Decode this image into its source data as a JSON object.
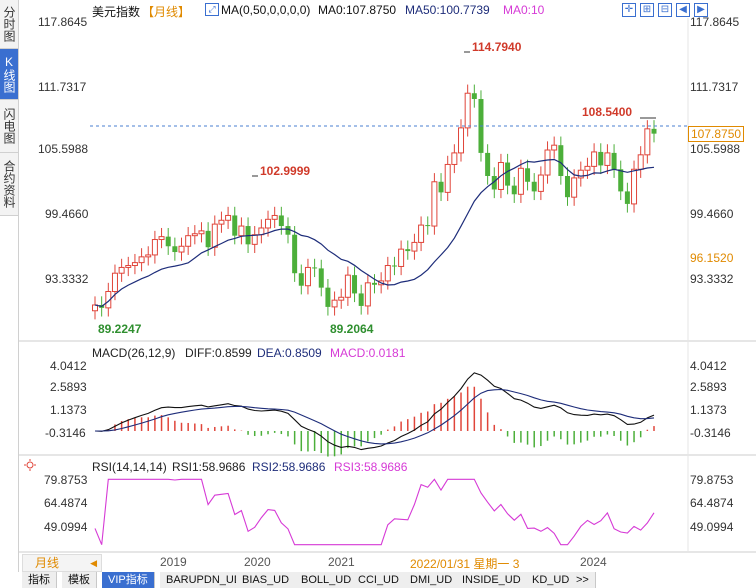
{
  "side_tabs": [
    "分时图",
    "K线图",
    "闪电图",
    "合约资料"
  ],
  "header": {
    "title": "美元指数",
    "period": "【月线】",
    "ma_label": "MA(0,50,0,0,0,0)",
    "ma0": "MA0:107.8750",
    "ma50": "MA50:100.7739",
    "ma0b": "MA0:10"
  },
  "colors": {
    "up": "#e0453a",
    "down": "#4caf3a",
    "ma": "#1e2d7a",
    "rsi": "#d63ad6",
    "accent": "#3a6fd0",
    "dashed": "#4a7fd0"
  },
  "main_axis": {
    "left_labels": [
      "117.8645",
      "111.7317",
      "105.5988",
      "99.4660",
      "93.3332"
    ],
    "right_labels": [
      "117.8645",
      "111.7317",
      "105.5988",
      "99.4660",
      "93.3332"
    ]
  },
  "annotations": {
    "high": "114.7940",
    "recent_high": "108.5400",
    "mid_high": "102.9999",
    "low1": "89.2247",
    "low2": "89.2064",
    "current_price": "107.8750",
    "ma_value": "96.1520"
  },
  "macd": {
    "title": "MACD(26,12,9)",
    "diff": "DIFF:0.8599",
    "dea": "DEA:0.8509",
    "macd": "MACD:0.0181",
    "labels": [
      "4.0412",
      "2.5893",
      "1.1373",
      "-0.3146"
    ]
  },
  "rsi": {
    "title": "RSI(14,14,14)",
    "rsi1": "RSI1:58.9686",
    "rsi2": "RSI2:58.9686",
    "rsi3": "RSI3:58.9686",
    "labels": [
      "79.8753",
      "64.4874",
      "49.0994"
    ]
  },
  "time_axis": {
    "period_button": "月线",
    "years": [
      "2019",
      "2020",
      "2021",
      "2024"
    ],
    "cursor": "2022/01/31 星期一 3"
  },
  "bottom_tabs": [
    "指标",
    "模板",
    "VIP指标",
    "BARUPDN_UD",
    "BIAS_UD",
    "BOLL_UD",
    "CCI_UD",
    "DMI_UD",
    "INSIDE_UD",
    "KD_UD",
    ">>"
  ],
  "chart_data": {
    "type": "candlestick",
    "series": [
      {
        "name": "MA50",
        "values": []
      }
    ],
    "ylim": [
      87.5,
      119.5
    ],
    "highs_marked": [
      114.794,
      108.54,
      102.9999
    ],
    "lows_marked": [
      89.2247,
      89.2064
    ]
  }
}
